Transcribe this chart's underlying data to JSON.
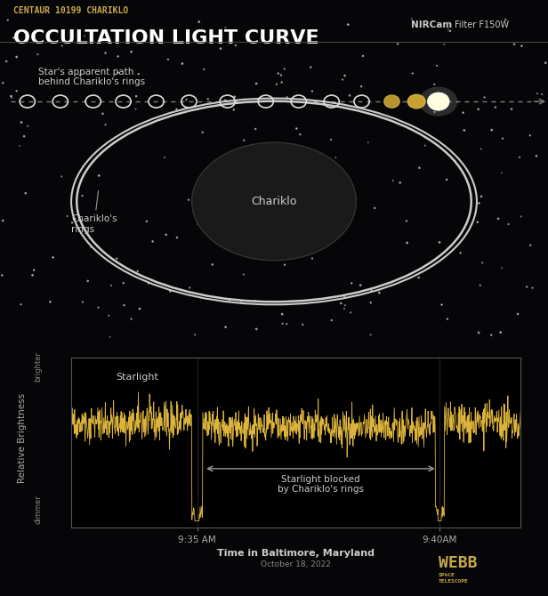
{
  "bg_color": "#060608",
  "title_sub": "CENTAUR 10199 CHARIKLO",
  "title_main": "OCCULTATION LIGHT CURVE",
  "title_sub_color": "#c8a84b",
  "title_main_color": "#ffffff",
  "nircam_label": "NIRCam",
  "filter_label": "Filter F150W",
  "chariklo_label": "Chariklo",
  "rings_label": "Chariklo's\nrings",
  "star_path_label": "Star's apparent path\nbehind Chariklo's rings",
  "starlight_label": "Starlight",
  "blocked_label": "Starlight blocked\nby Chariklo's rings",
  "xlabel_main": "Time in Baltimore, Maryland",
  "xlabel_sub": "October 18, 2022",
  "ylabel": "Relative Brightness",
  "brighter_label": "brighter",
  "dimmer_label": "dimmer",
  "time_labels": [
    "9:35 AM",
    "9:40AM"
  ],
  "ring_color": "#cccccc",
  "star_color": "#f5c842",
  "plot_bg": "#000000",
  "plot_border_color": "#555555",
  "signal_color": "#f5c842",
  "annotation_color": "#aaaaaa",
  "webb_color": "#c8a84b"
}
